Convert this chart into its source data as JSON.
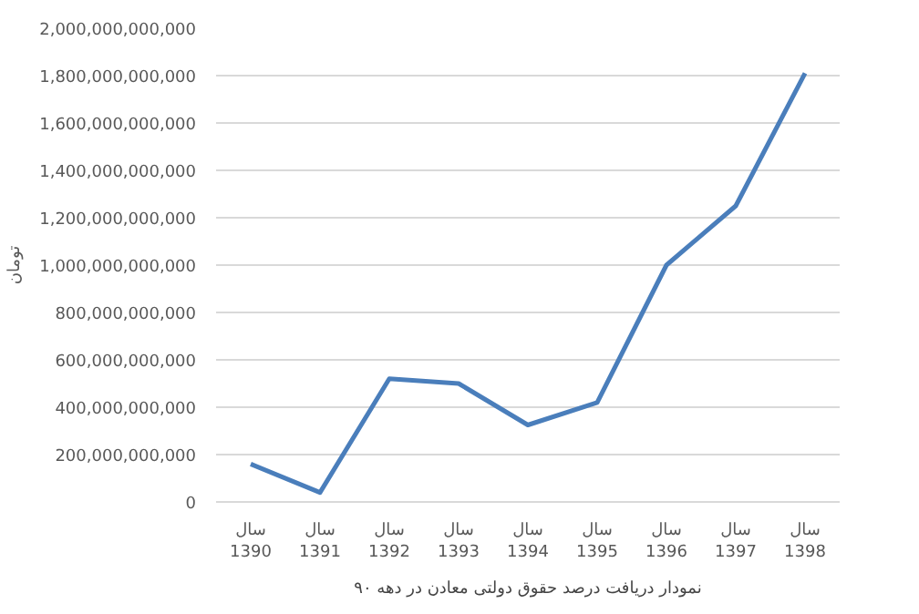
{
  "chart_data": {
    "type": "line",
    "title": "نمودار دریافت درصد حقوق دولتی معادن در دهه ۹۰",
    "ylabel": "تومان",
    "categories": [
      "سال\n1390",
      "سال\n1391",
      "سال\n1392",
      "سال\n1393",
      "سال\n1394",
      "سال\n1395",
      "سال\n1396",
      "سال\n1397",
      "سال\n1398"
    ],
    "series": [
      {
        "color": "#4a7ebb",
        "values": [
          160000000000,
          40000000000,
          520000000000,
          500000000000,
          325000000000,
          420000000000,
          1000000000000,
          1250000000000,
          1810000000000
        ]
      }
    ],
    "ylim": [
      0,
      2000000000000
    ],
    "yticks": [
      0,
      {
        "value": 200000000000,
        "label": "200,000,000,000"
      },
      {
        "value": 400000000000,
        "label": "400,000,000,000"
      },
      {
        "value": 600000000000,
        "label": "600,000,000,000"
      },
      {
        "value": 800000000000,
        "label": "800,000,000,000"
      },
      {
        "value": 1000000000000,
        "label": "1,000,000,000,000"
      },
      {
        "value": 1200000000000,
        "label": "1,200,000,000,000"
      },
      {
        "value": 1400000000000,
        "label": "1,400,000,000,000"
      },
      {
        "value": 1600000000000,
        "label": "1,600,000,000,000"
      },
      {
        "value": 1800000000000,
        "label": "1,800,000,000,000"
      },
      {
        "value": 2000000000000,
        "label": "2,000,000,000,000"
      }
    ],
    "grid": "y",
    "marker": "none",
    "line_style": "solid"
  }
}
